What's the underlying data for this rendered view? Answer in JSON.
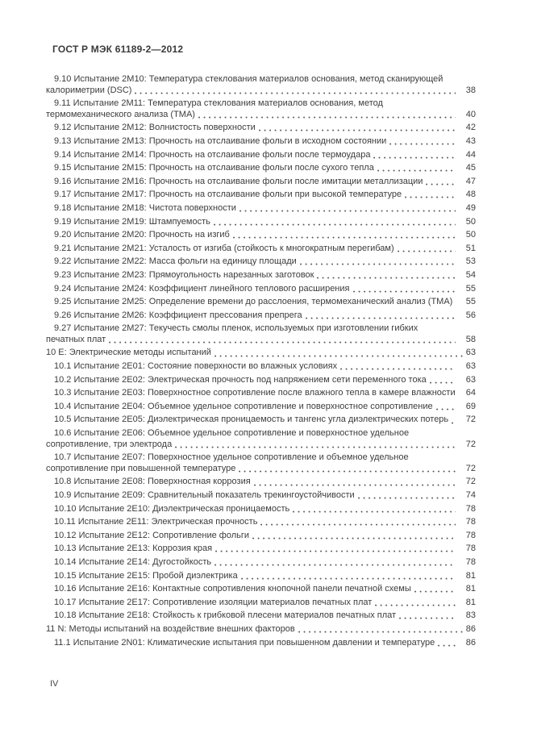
{
  "page": {
    "header": "ГОСТ Р МЭК 61189-2—2012",
    "footer_page_label": "IV"
  },
  "toc": {
    "entries": [
      {
        "level": 2,
        "text": "9.10 Испытание 2М10: Температура стеклования материалов основания, метод сканирующей калориметрии (DSC)",
        "page": "38"
      },
      {
        "level": 2,
        "text": "9.11 Испытание 2М11: Температура стеклования материалов основания, метод термомеханического анализа (ТМА)",
        "page": "40"
      },
      {
        "level": 2,
        "text": "9.12 Испытание 2М12: Волнистость поверхности",
        "page": "42"
      },
      {
        "level": 2,
        "text": "9.13 Испытание 2М13: Прочность на отслаивание фольги в исходном состоянии",
        "page": "43"
      },
      {
        "level": 2,
        "text": "9.14 Испытание 2М14: Прочность на отслаивание фольги после термоудара",
        "page": "44"
      },
      {
        "level": 2,
        "text": "9.15 Испытание 2М15: Прочность на отслаивание фольги после сухого тепла",
        "page": "45"
      },
      {
        "level": 2,
        "text": "9.16 Испытание 2М16: Прочность на отслаивание фольги после имитации металлизации",
        "page": "47"
      },
      {
        "level": 2,
        "text": "9.17 Испытание 2М17: Прочность на отслаивание фольги при высокой температуре",
        "page": "48"
      },
      {
        "level": 2,
        "text": "9.18 Испытание 2М18: Чистота поверхности",
        "page": "49"
      },
      {
        "level": 2,
        "text": "9.19 Испытание 2М19: Штампуемость",
        "page": "50"
      },
      {
        "level": 2,
        "text": "9.20 Испытание 2М20: Прочность на изгиб",
        "page": "50"
      },
      {
        "level": 2,
        "text": "9.21 Испытание 2М21: Усталость от изгиба (стойкость к многократным перегибам)",
        "page": "51"
      },
      {
        "level": 2,
        "text": "9.22 Испытание 2М22: Масса фольги на единицу площади",
        "page": "53"
      },
      {
        "level": 2,
        "text": "9.23 Испытание 2М23: Прямоугольность нарезанных заготовок",
        "page": "54"
      },
      {
        "level": 2,
        "text": "9.24 Испытание 2М24: Коэффициент линейного теплового расширения",
        "page": "55"
      },
      {
        "level": 2,
        "text": "9.25 Испытание 2М25: Определение времени до расслоения, термомеханический анализ (ТМА)",
        "page": "55"
      },
      {
        "level": 2,
        "text": "9.26 Испытание 2М26: Коэффициент прессования препрега",
        "page": "56"
      },
      {
        "level": 2,
        "text": "9.27 Испытание 2М27: Текучесть смолы пленок, используемых при изготовлении гибких печатных плат",
        "page": "58"
      },
      {
        "level": 1,
        "text": "10 Е: Электрические методы испытаний",
        "page": "63"
      },
      {
        "level": 2,
        "text": "10.1 Испытание 2Е01: Состояние поверхности во влажных условиях",
        "page": "63"
      },
      {
        "level": 2,
        "text": "10.2 Испытание 2Е02: Электрическая прочность под напряжением сети переменного тока",
        "page": "63"
      },
      {
        "level": 2,
        "text": "10.3 Испытание 2Е03: Поверхностное сопротивление после влажного тепла в камере влажности",
        "page": "64"
      },
      {
        "level": 2,
        "text": "10.4 Испытание 2Е04: Объемное удельное сопротивление и поверхностное сопротивление",
        "page": "69"
      },
      {
        "level": 2,
        "text": "10.5 Испытание 2Е05: Диэлектрическая проницаемость и тангенс угла диэлектрических потерь",
        "page": "72"
      },
      {
        "level": 2,
        "text": "10.6 Испытание 2Е06: Объемное удельное сопротивление и поверхностное удельное сопротивление, три электрода",
        "page": "72"
      },
      {
        "level": 2,
        "text": "10.7 Испытание 2Е07: Поверхностное удельное сопротивление и объемное удельное сопротивление при повышенной температуре",
        "page": "72"
      },
      {
        "level": 2,
        "text": "10.8 Испытание 2Е08: Поверхностная коррозия",
        "page": "72"
      },
      {
        "level": 2,
        "text": "10.9 Испытание 2Е09: Сравнительный показатель трекингоустойчивости",
        "page": "74"
      },
      {
        "level": 2,
        "text": "10.10 Испытание 2Е10: Диэлектрическая проницаемость",
        "page": "78"
      },
      {
        "level": 2,
        "text": "10.11 Испытание 2Е11: Электрическая прочность",
        "page": "78"
      },
      {
        "level": 2,
        "text": "10.12 Испытание 2Е12: Сопротивление фольги",
        "page": "78"
      },
      {
        "level": 2,
        "text": "10.13 Испытание 2Е13: Коррозия края",
        "page": "78"
      },
      {
        "level": 2,
        "text": "10.14 Испытание 2Е14: Дугостойкость",
        "page": "78"
      },
      {
        "level": 2,
        "text": "10.15 Испытание 2Е15: Пробой диэлектрика",
        "page": "81"
      },
      {
        "level": 2,
        "text": "10.16 Испытание 2Е16: Контактные сопротивления кнопочной панели печатной схемы",
        "page": "81"
      },
      {
        "level": 2,
        "text": "10.17 Испытание 2Е17: Сопротивление изоляции материалов печатных плат",
        "page": "81"
      },
      {
        "level": 2,
        "text": "10.18 Испытание 2Е18: Стойкость к грибковой плесени материалов печатных плат",
        "page": "83"
      },
      {
        "level": 1,
        "text": "11 N: Методы испытаний на воздействие внешних факторов",
        "page": "86"
      },
      {
        "level": 2,
        "text": "11.1 Испытание 2N01: Климатические испытания при повышенном давлении и температуре",
        "page": "86"
      }
    ]
  }
}
